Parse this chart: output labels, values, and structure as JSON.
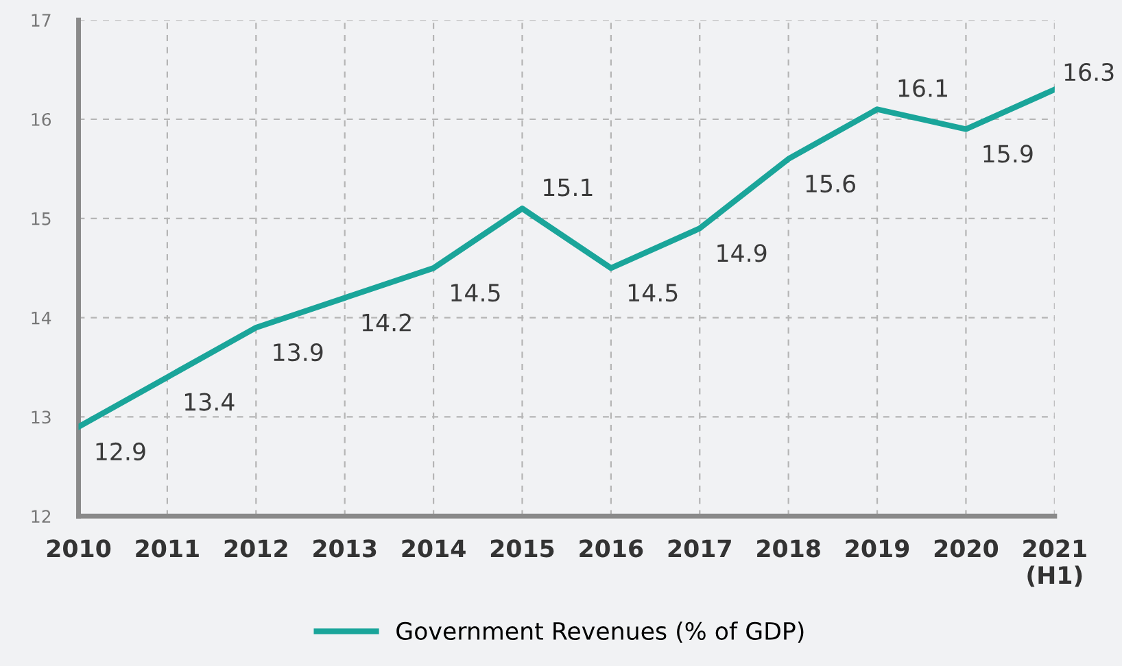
{
  "chart_data": {
    "type": "line",
    "categories": [
      "2010",
      "2011",
      "2012",
      "2013",
      "2014",
      "2015",
      "2016",
      "2017",
      "2018",
      "2019",
      "2020",
      "2021\n(H1)"
    ],
    "series": [
      {
        "name": "Government Revenues (% of GDP)",
        "color": "#1aa59a",
        "values": [
          12.9,
          13.4,
          13.9,
          14.2,
          14.5,
          15.1,
          14.5,
          14.9,
          15.6,
          16.1,
          15.9,
          16.3
        ]
      }
    ],
    "ylim": [
      12,
      17
    ],
    "yticks": [
      12,
      13,
      14,
      15,
      16,
      17
    ],
    "grid": true,
    "legend": "bottom",
    "data_labels": true,
    "marker": "none",
    "line_style": "solid"
  }
}
